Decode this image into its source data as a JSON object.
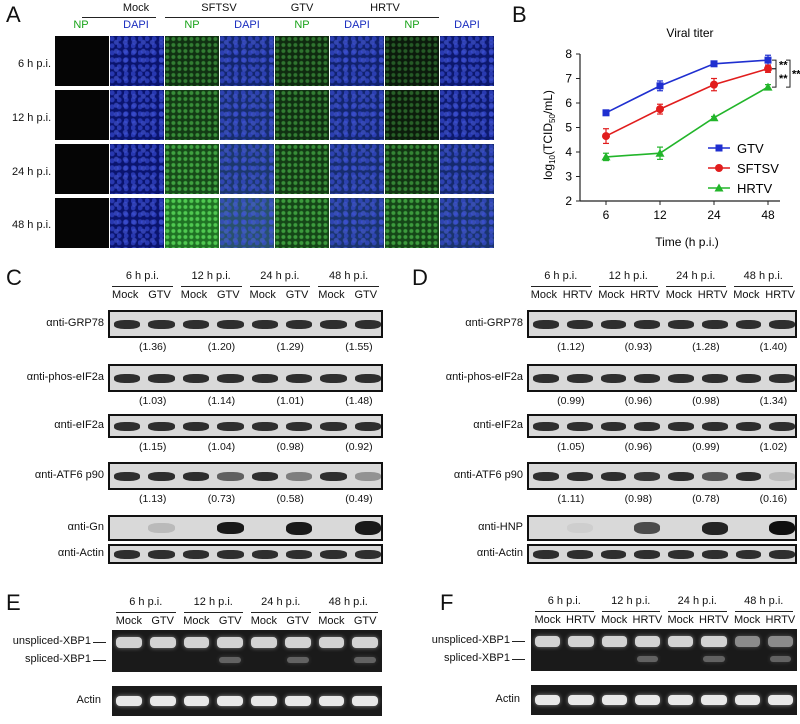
{
  "panels": {
    "A": {
      "letter": "A",
      "groups": [
        "Mock",
        "SFTSV",
        "GTV",
        "HRTV"
      ],
      "channels": [
        "NP",
        "DAPI"
      ],
      "rows": [
        "6 h p.i.",
        "12 h p.i.",
        "24 h p.i.",
        "48 h p.i."
      ]
    },
    "B": {
      "letter": "B"
    },
    "C": {
      "letter": "C",
      "timepoints": [
        "6 h p.i.",
        "12 h p.i.",
        "24 h p.i.",
        "48 h p.i."
      ],
      "lanes": [
        "Mock",
        "GTV",
        "Mock",
        "GTV",
        "Mock",
        "GTV",
        "Mock",
        "GTV"
      ],
      "blots": [
        {
          "label": "αnti-GRP78",
          "ratios": [
            "(1.36)",
            "(1.20)",
            "(1.29)",
            "(1.55)"
          ]
        },
        {
          "label": "αnti-phos-eIF2a",
          "ratios": [
            "(1.03)",
            "(1.14)",
            "(1.01)",
            "(1.48)"
          ]
        },
        {
          "label": "αnti-eIF2a",
          "ratios": [
            "(1.15)",
            "(1.04)",
            "(0.98)",
            "(0.92)"
          ]
        },
        {
          "label": "αnti-ATF6 p90",
          "ratios": [
            "(1.13)",
            "(0.73)",
            "(0.58)",
            "(0.49)"
          ]
        },
        {
          "label": "αnti-Gn",
          "ratios": []
        },
        {
          "label": "αnti-Actin",
          "ratios": []
        }
      ]
    },
    "D": {
      "letter": "D",
      "timepoints": [
        "6 h p.i.",
        "12 h p.i.",
        "24 h p.i.",
        "48 h p.i."
      ],
      "lanes": [
        "Mock",
        "HRTV",
        "Mock",
        "HRTV",
        "Mock",
        "HRTV",
        "Mock",
        "HRTV"
      ],
      "blots": [
        {
          "label": "αnti-GRP78",
          "ratios": [
            "(1.12)",
            "(0.93)",
            "(1.28)",
            "(1.40)"
          ]
        },
        {
          "label": "αnti-phos-eIF2a",
          "ratios": [
            "(0.99)",
            "(0.96)",
            "(0.98)",
            "(1.34)"
          ]
        },
        {
          "label": "αnti-eIF2a",
          "ratios": [
            "(1.05)",
            "(0.96)",
            "(0.99)",
            "(1.02)"
          ]
        },
        {
          "label": "αnti-ATF6 p90",
          "ratios": [
            "(1.11)",
            "(0.98)",
            "(0.78)",
            "(0.16)"
          ]
        },
        {
          "label": "αnti-HNP",
          "ratios": []
        },
        {
          "label": "αnti-Actin",
          "ratios": []
        }
      ]
    },
    "E": {
      "letter": "E",
      "timepoints": [
        "6 h p.i.",
        "12 h p.i.",
        "24 h p.i.",
        "48 h p.i."
      ],
      "lanes": [
        "Mock",
        "GTV",
        "Mock",
        "GTV",
        "Mock",
        "GTV",
        "Mock",
        "GTV"
      ],
      "labels": [
        "unspliced-XBP1",
        "spliced-XBP1",
        "Actin"
      ]
    },
    "F": {
      "letter": "F",
      "timepoints": [
        "6 h p.i.",
        "12 h p.i.",
        "24 h p.i.",
        "48 h p.i."
      ],
      "lanes": [
        "Mock",
        "HRTV",
        "Mock",
        "HRTV",
        "Mock",
        "HRTV",
        "Mock",
        "HRTV"
      ],
      "labels": [
        "unspliced-XBP1",
        "spliced-XBP1",
        "Actin"
      ]
    }
  },
  "chart_data": {
    "type": "line",
    "title": "Viral titer",
    "xlabel": "Time (h p.i.)",
    "ylabel": "log10(TCID50/mL)",
    "categories": [
      "6",
      "12",
      "24",
      "48"
    ],
    "ylim": [
      2,
      8
    ],
    "yticks": [
      "2",
      "3",
      "4",
      "5",
      "6",
      "7",
      "8"
    ],
    "series": [
      {
        "name": "GTV",
        "color": "#1f2fd0",
        "marker": "square",
        "values": [
          5.6,
          6.7,
          7.6,
          7.75
        ],
        "errors": [
          0.1,
          0.2,
          0.1,
          0.2
        ]
      },
      {
        "name": "SFTSV",
        "color": "#e11d1d",
        "marker": "circle",
        "values": [
          4.65,
          5.75,
          6.75,
          7.4
        ],
        "errors": [
          0.3,
          0.2,
          0.25,
          0.15
        ]
      },
      {
        "name": "HRTV",
        "color": "#22b52a",
        "marker": "triangle",
        "values": [
          3.8,
          3.95,
          5.4,
          6.65
        ],
        "errors": [
          0.15,
          0.25,
          0.05,
          0.1
        ]
      }
    ],
    "annotations": [
      "**",
      "**",
      "**"
    ],
    "legend": "right"
  }
}
